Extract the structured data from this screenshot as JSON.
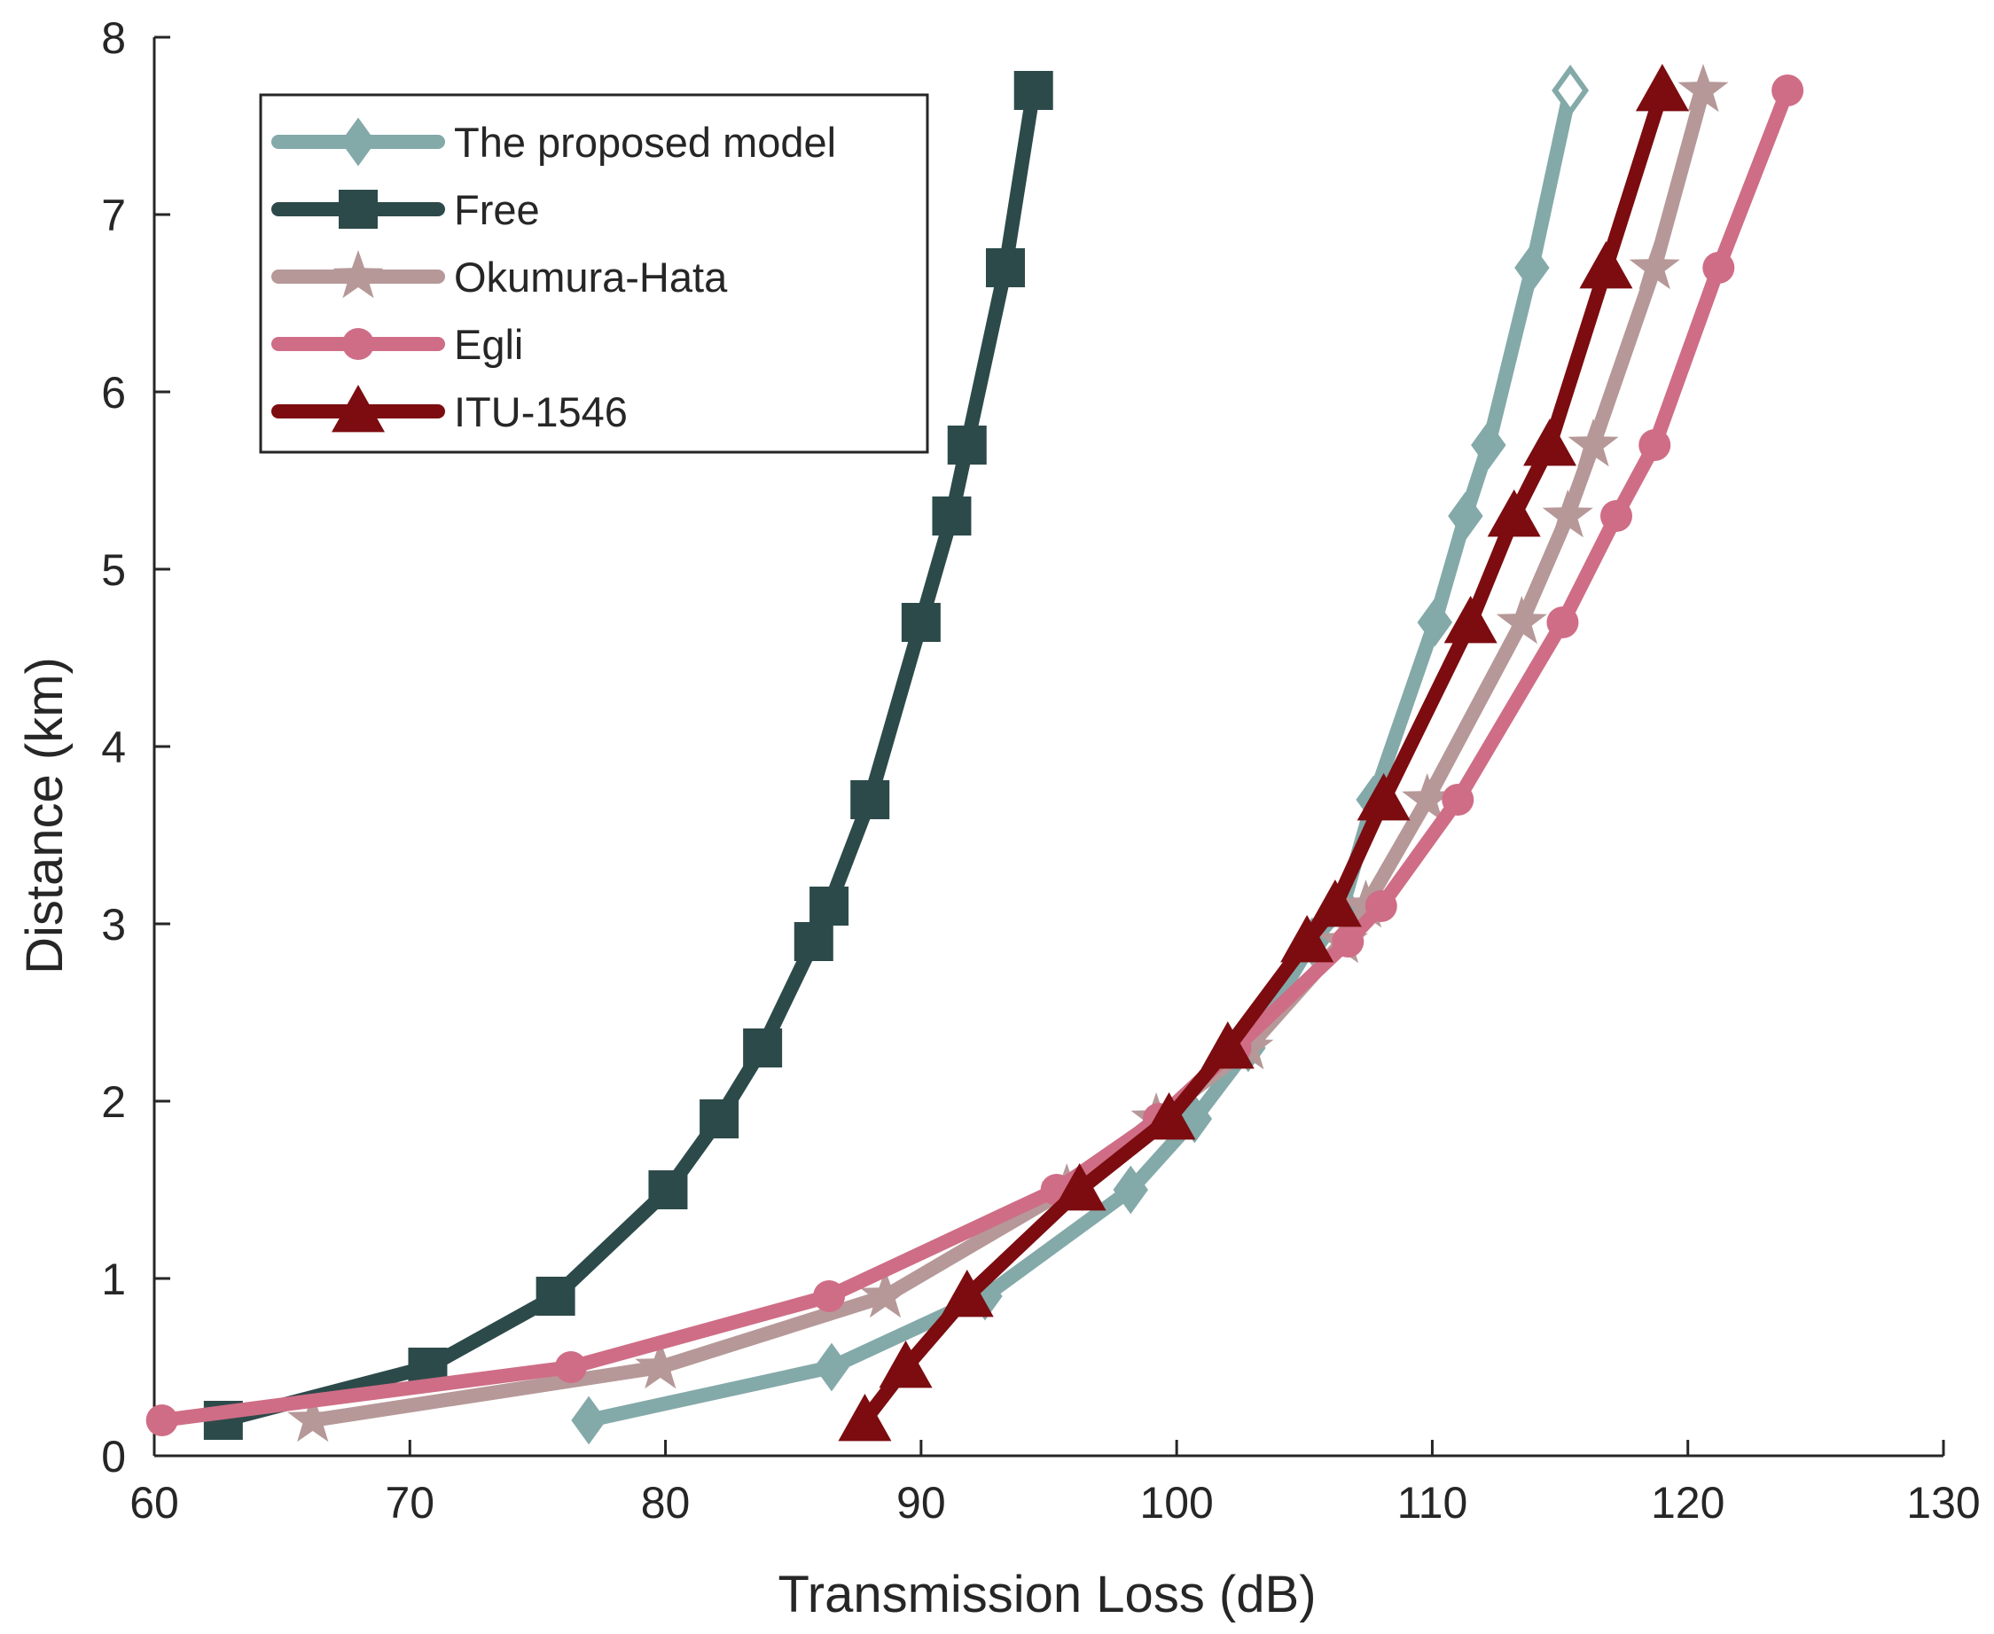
{
  "chart_data": {
    "type": "line",
    "title": "",
    "xlabel": "Transmission Loss (dB)",
    "ylabel": "Distance (km)",
    "xlim": [
      60,
      130
    ],
    "ylim": [
      0,
      8
    ],
    "xticks": [
      60,
      70,
      80,
      90,
      100,
      110,
      120,
      130
    ],
    "yticks": [
      0,
      1,
      2,
      3,
      4,
      5,
      6,
      7,
      8
    ],
    "grid": false,
    "legend_position": "top-left",
    "y": [
      0.2,
      0.5,
      0.9,
      1.5,
      1.9,
      2.3,
      2.9,
      3.1,
      3.7,
      4.7,
      5.3,
      5.7,
      6.7,
      7.7
    ],
    "series": [
      {
        "name": "The proposed model",
        "marker": "diamond",
        "color": "#84a9a9",
        "x": [
          77.0,
          86.5,
          92.5,
          98.2,
          100.7,
          102.8,
          105.3,
          106.5,
          107.7,
          110.1,
          111.3,
          112.2,
          113.9,
          115.4
        ]
      },
      {
        "name": "Free",
        "marker": "square",
        "color": "#2d4a4a",
        "x": [
          62.7,
          70.7,
          75.7,
          80.1,
          82.1,
          83.8,
          85.8,
          86.4,
          88.0,
          90.0,
          91.2,
          91.8,
          93.3,
          94.4
        ]
      },
      {
        "name": "Okumura-Hata",
        "marker": "star",
        "color": "#b69898",
        "x": [
          66.2,
          79.8,
          88.6,
          95.7,
          99.2,
          102.8,
          106.5,
          107.4,
          109.8,
          113.5,
          115.3,
          116.3,
          118.7,
          120.6
        ]
      },
      {
        "name": "Egli",
        "marker": "circle",
        "color": "#cf6d86",
        "x": [
          60.3,
          76.3,
          86.4,
          95.3,
          99.3,
          102.3,
          106.7,
          108.0,
          111.0,
          115.1,
          117.2,
          118.7,
          121.2,
          123.9
        ]
      },
      {
        "name": "ITU-1546",
        "marker": "triangle",
        "color": "#7c0c10",
        "x": [
          87.8,
          89.4,
          91.8,
          96.2,
          99.7,
          102.0,
          105.1,
          106.2,
          108.1,
          111.5,
          113.2,
          114.6,
          116.8,
          119.0
        ]
      }
    ]
  }
}
